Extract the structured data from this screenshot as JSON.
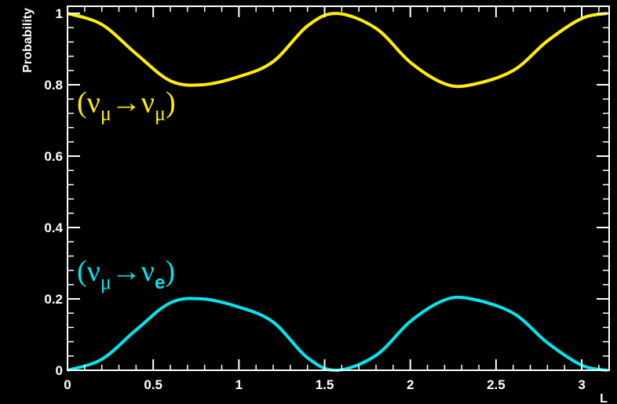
{
  "chart_data": {
    "type": "line",
    "title": "",
    "xlabel": "L",
    "ylabel": "Probability",
    "xlim": [
      0,
      3.16
    ],
    "ylim": [
      0,
      1.02
    ],
    "grid": false,
    "background": "#000000",
    "axis_color": "#ffffff",
    "x_ticks": [
      {
        "value": 0,
        "label": "0"
      },
      {
        "value": 0.5,
        "label": "0.5"
      },
      {
        "value": 1,
        "label": "1"
      },
      {
        "value": 1.5,
        "label": "1.5"
      },
      {
        "value": 2,
        "label": "2"
      },
      {
        "value": 2.5,
        "label": "2.5"
      },
      {
        "value": 3,
        "label": "3"
      }
    ],
    "y_ticks": [
      {
        "value": 0,
        "label": "0"
      },
      {
        "value": 0.2,
        "label": "0.2"
      },
      {
        "value": 0.4,
        "label": "0.4"
      },
      {
        "value": 0.6,
        "label": "0.6"
      },
      {
        "value": 0.8,
        "label": "0.8"
      },
      {
        "value": 1,
        "label": "1"
      }
    ],
    "series": [
      {
        "color": "#ffee00",
        "x": [
          0,
          0.2,
          0.4,
          0.6,
          0.785,
          1.0,
          1.2,
          1.4,
          1.571,
          1.8,
          2.0,
          2.2,
          2.356,
          2.6,
          2.8,
          3.0,
          3.15
        ],
        "y": [
          1.0,
          0.969,
          0.887,
          0.811,
          0.8,
          0.823,
          0.865,
          0.965,
          1.0,
          0.958,
          0.863,
          0.803,
          0.8,
          0.84,
          0.923,
          0.986,
          1.0
        ]
      },
      {
        "color": "#00e5ee",
        "x": [
          0,
          0.2,
          0.4,
          0.6,
          0.785,
          1.0,
          1.2,
          1.4,
          1.571,
          1.8,
          2.0,
          2.2,
          2.356,
          2.6,
          2.8,
          3.0,
          3.15
        ],
        "y": [
          0.0,
          0.031,
          0.113,
          0.189,
          0.2,
          0.177,
          0.135,
          0.035,
          0.0,
          0.042,
          0.137,
          0.197,
          0.2,
          0.16,
          0.077,
          0.014,
          0.0
        ]
      }
    ],
    "annotations": [
      {
        "color": "#ffee00",
        "value": 0.8,
        "open": "(",
        "main1": "ν",
        "sub1": "μ",
        "arrow": "→",
        "main2": "ν",
        "sub2": "μ",
        "close": ")"
      },
      {
        "color": "#00e5ee",
        "value": 0.27,
        "open": "(",
        "main1": "ν",
        "sub1": "μ",
        "arrow": "→",
        "main2": "ν",
        "sub2": "e",
        "close": ")"
      }
    ]
  }
}
